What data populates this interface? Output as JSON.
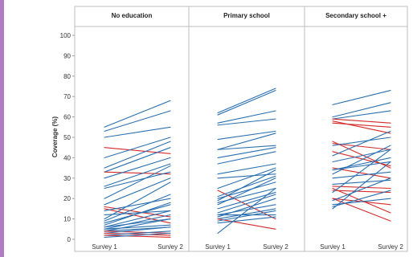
{
  "chart_data": {
    "type": "line",
    "ylabel": "Coverage (%)",
    "ylim": [
      0,
      100
    ],
    "yticks": [
      "0",
      "10",
      "20",
      "30",
      "40",
      "50",
      "60",
      "70",
      "80",
      "90",
      "100"
    ],
    "x_categories": [
      "Survey 1",
      "Survey 2"
    ],
    "colors": {
      "increase": "#2a6fb0",
      "decrease": "#d62a2a",
      "grid": "#cfcfcf"
    },
    "panels": [
      {
        "title": "No education",
        "pairs": [
          [
            55,
            68
          ],
          [
            53,
            63
          ],
          [
            50,
            55
          ],
          [
            45,
            42
          ],
          [
            40,
            50
          ],
          [
            35,
            48
          ],
          [
            33,
            45
          ],
          [
            33,
            32
          ],
          [
            30,
            40
          ],
          [
            26,
            37
          ],
          [
            25,
            33
          ],
          [
            20,
            36
          ],
          [
            17,
            30
          ],
          [
            16,
            11
          ],
          [
            15,
            8
          ],
          [
            14,
            20
          ],
          [
            12,
            14
          ],
          [
            10,
            28
          ],
          [
            9,
            22
          ],
          [
            8,
            17
          ],
          [
            7,
            18
          ],
          [
            6,
            14
          ],
          [
            6,
            10
          ],
          [
            5,
            12
          ],
          [
            5,
            7
          ],
          [
            4,
            10
          ],
          [
            4,
            6
          ],
          [
            4,
            3
          ],
          [
            3,
            6
          ],
          [
            3,
            2
          ],
          [
            2,
            4
          ],
          [
            2,
            1
          ],
          [
            1,
            3
          ]
        ]
      },
      {
        "title": "Primary school",
        "pairs": [
          [
            62,
            74
          ],
          [
            61,
            73
          ],
          [
            57,
            63
          ],
          [
            56,
            59
          ],
          [
            49,
            53
          ],
          [
            44,
            52
          ],
          [
            44,
            46
          ],
          [
            40,
            45
          ],
          [
            37,
            43
          ],
          [
            32,
            37
          ],
          [
            30,
            32
          ],
          [
            25,
            35
          ],
          [
            24,
            10
          ],
          [
            21,
            31
          ],
          [
            20,
            28
          ],
          [
            19,
            34
          ],
          [
            18,
            25
          ],
          [
            17,
            30
          ],
          [
            15,
            23
          ],
          [
            13,
            22
          ],
          [
            12,
            17
          ],
          [
            12,
            12
          ],
          [
            11,
            20
          ],
          [
            10,
            15
          ],
          [
            10,
            5
          ],
          [
            9,
            14
          ],
          [
            8,
            11
          ],
          [
            3,
            25
          ]
        ]
      },
      {
        "title": "Secondary school +",
        "pairs": [
          [
            66,
            73
          ],
          [
            60,
            67
          ],
          [
            59,
            63
          ],
          [
            59,
            57
          ],
          [
            58,
            52
          ],
          [
            57,
            55
          ],
          [
            48,
            35
          ],
          [
            47,
            44
          ],
          [
            46,
            50
          ],
          [
            43,
            36
          ],
          [
            41,
            53
          ],
          [
            38,
            44
          ],
          [
            35,
            30
          ],
          [
            34,
            38
          ],
          [
            34,
            40
          ],
          [
            32,
            46
          ],
          [
            30,
            33
          ],
          [
            27,
            29
          ],
          [
            26,
            25
          ],
          [
            25,
            13
          ],
          [
            24,
            23
          ],
          [
            23,
            44
          ],
          [
            20,
            17
          ],
          [
            20,
            9
          ],
          [
            19,
            30
          ],
          [
            17,
            20
          ],
          [
            16,
            24
          ],
          [
            15,
            38
          ]
        ]
      }
    ]
  }
}
